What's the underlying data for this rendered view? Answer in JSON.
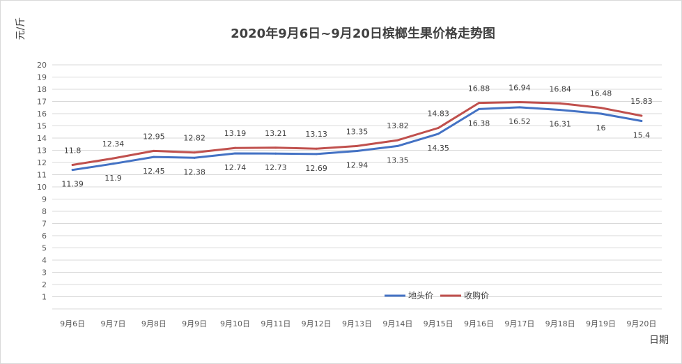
{
  "chart_data": {
    "type": "line",
    "title": "2020年9月6日~9月20日槟榔生果价格走势图",
    "ylabel": "元/斤",
    "xlabel": "日期",
    "categories": [
      "9月6日",
      "9月7日",
      "9月8日",
      "9月9日",
      "9月10日",
      "9月11日",
      "9月12日",
      "9月13日",
      "9月14日",
      "9月15日",
      "9月16日",
      "9月17日",
      "9月18日",
      "9月19日",
      "9月20日"
    ],
    "yticks": [
      "1",
      "2",
      "3",
      "4",
      "5",
      "6",
      "7",
      "8",
      "9",
      "10",
      "11",
      "12",
      "13",
      "14",
      "15",
      "16",
      "17",
      "18",
      "19",
      "20"
    ],
    "ylim": [
      0,
      20
    ],
    "grid": true,
    "legend_position": "bottom-right inside",
    "series": [
      {
        "name": "地头价",
        "color": "#4472c4",
        "values": [
          11.39,
          11.9,
          12.45,
          12.38,
          12.74,
          12.73,
          12.69,
          12.94,
          13.35,
          14.35,
          16.38,
          16.52,
          16.31,
          16,
          15.4
        ],
        "labels": [
          "11.39",
          "11.9",
          "12.45",
          "12.38",
          "12.74",
          "12.73",
          "12.69",
          "12.94",
          "13.35",
          "14.35",
          "16.38",
          "16.52",
          "16.31",
          "16",
          "15.4"
        ]
      },
      {
        "name": "收购价",
        "color": "#c0504d",
        "values": [
          11.8,
          12.34,
          12.95,
          12.82,
          13.19,
          13.21,
          13.13,
          13.35,
          13.82,
          14.83,
          16.88,
          16.94,
          16.84,
          16.48,
          15.83
        ],
        "labels": [
          "11.8",
          "12.34",
          "12.95",
          "12.82",
          "13.19",
          "13.21",
          "13.13",
          "13.35",
          "13.82",
          "14.83",
          "16.88",
          "16.94",
          "16.84",
          "16.48",
          "15.83"
        ]
      }
    ]
  }
}
